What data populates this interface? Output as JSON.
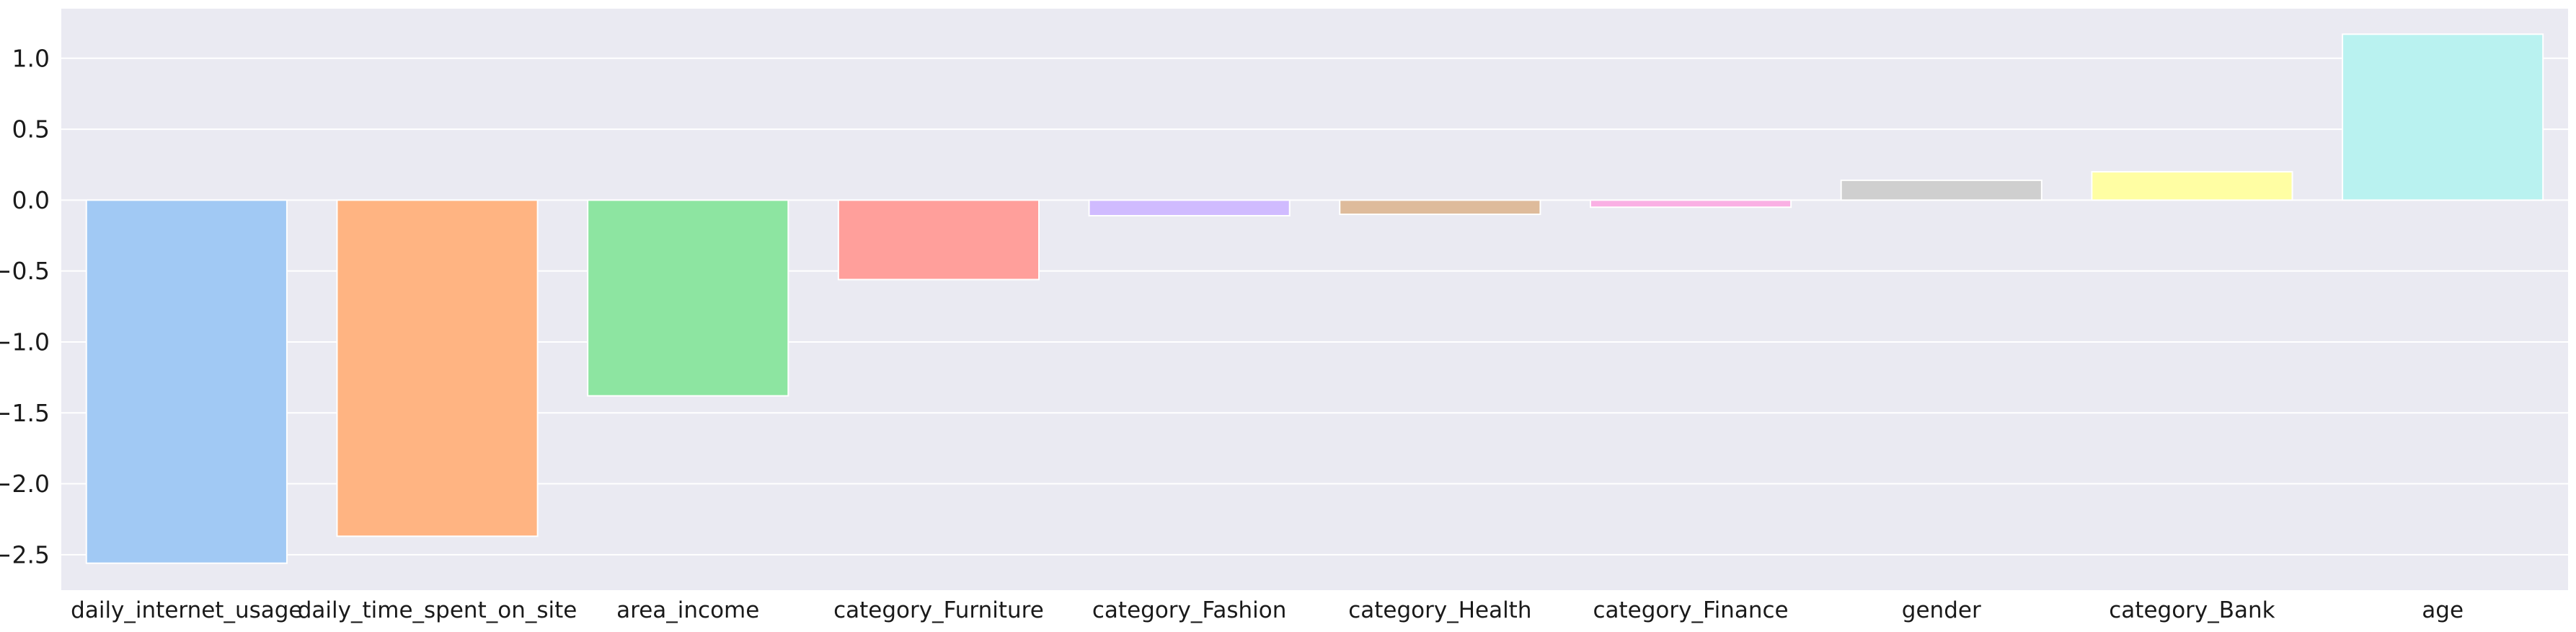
{
  "chart_data": {
    "type": "bar",
    "title": "",
    "xlabel": "",
    "ylabel": "",
    "categories": [
      "daily_internet_usage",
      "daily_time_spent_on_site",
      "area_income",
      "category_Furniture",
      "category_Fashion",
      "category_Health",
      "category_Finance",
      "gender",
      "category_Bank",
      "age"
    ],
    "values": [
      -2.56,
      -2.37,
      -1.38,
      -0.56,
      -0.11,
      -0.1,
      -0.05,
      0.14,
      0.2,
      1.17
    ],
    "ylim": [
      -2.75,
      1.35
    ],
    "yticks": [
      1.0,
      0.5,
      0.0,
      -0.5,
      -1.0,
      -1.5,
      -2.0,
      -2.5
    ],
    "ytick_labels": [
      "1.0",
      "0.5",
      "0.0",
      "−0.5",
      "−1.0",
      "−1.5",
      "−2.0",
      "−2.5"
    ],
    "grid": true,
    "legend": "none",
    "background_color": "#eaeaf2",
    "colors": [
      "#a1c9f4",
      "#ffb482",
      "#8de5a1",
      "#ff9f9b",
      "#d0bbff",
      "#debb9b",
      "#fab0e4",
      "#cfcfcf",
      "#fffea3",
      "#b9f2f0"
    ]
  }
}
